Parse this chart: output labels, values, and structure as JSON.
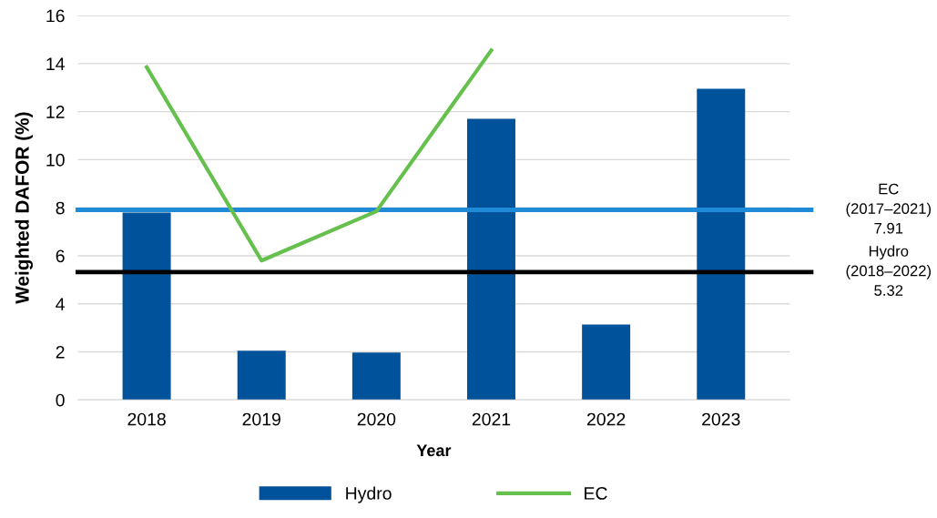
{
  "chart_data": {
    "type": "bar",
    "xlabel": "Year",
    "ylabel": "Weighted DAFOR (%)",
    "categories": [
      "2018",
      "2019",
      "2020",
      "2021",
      "2022",
      "2023"
    ],
    "series": [
      {
        "name": "Hydro",
        "color": "#00539b",
        "values": [
          7.8,
          2.05,
          1.97,
          11.7,
          3.14,
          12.95
        ]
      },
      {
        "name": "EC",
        "color": "#66c04e",
        "type": "line",
        "values": [
          13.85,
          5.8,
          7.85,
          14.55,
          null,
          null
        ]
      }
    ],
    "ylim": [
      0,
      16
    ],
    "yticks": [
      0,
      2,
      4,
      6,
      8,
      10,
      12,
      14,
      16
    ],
    "grid": "y",
    "legend": "bottom",
    "ref_lines": [
      {
        "axis": "y",
        "value": 7.91,
        "label": "EC\n(2017–2021)\n7.91",
        "color": "#1f8ad6",
        "line_style": "solid"
      },
      {
        "axis": "y",
        "value": 5.32,
        "label": "Hydro\n(2018–2022)\n5.32",
        "color": "#000000",
        "line_style": "solid"
      }
    ]
  }
}
